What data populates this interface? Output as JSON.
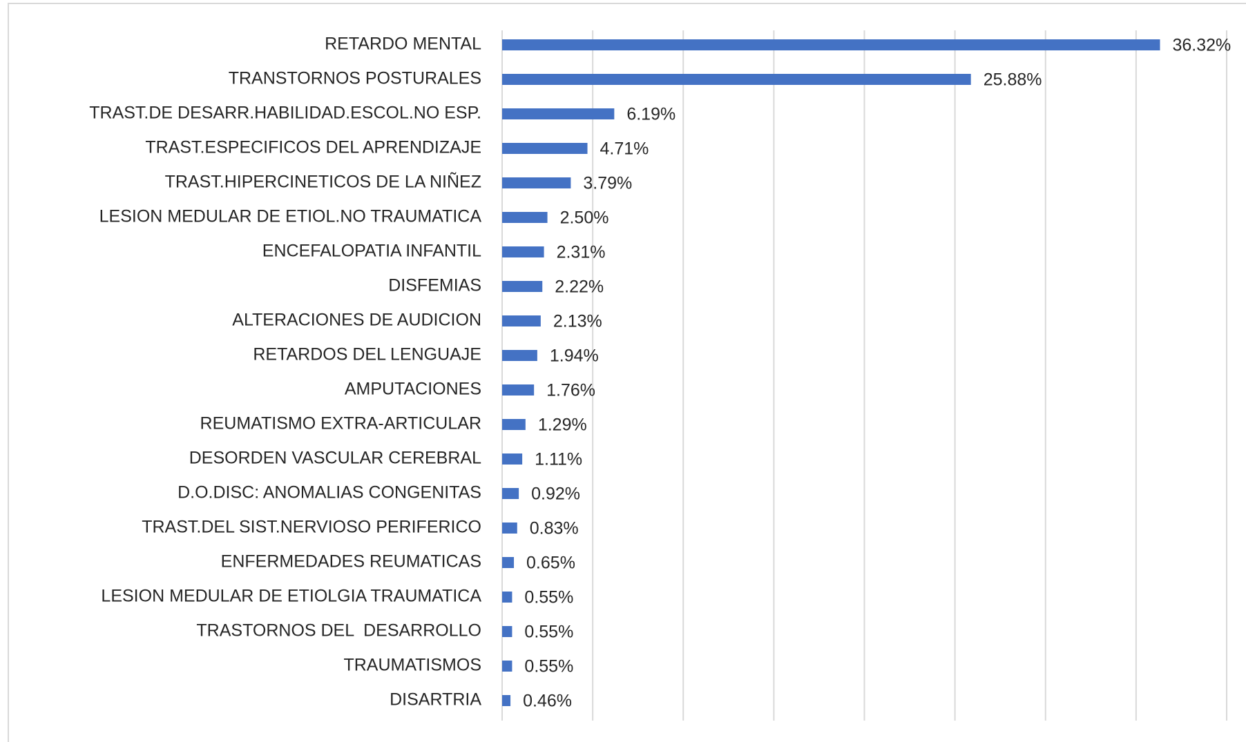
{
  "chart_data": {
    "type": "bar",
    "orientation": "horizontal",
    "categories": [
      "RETARDO MENTAL",
      "TRANSTORNOS POSTURALES",
      "TRAST.DE DESARR.HABILIDAD.ESCOL.NO ESP.",
      "TRAST.ESPECIFICOS DEL APRENDIZAJE",
      "TRAST.HIPERCINETICOS DE LA NIÑEZ",
      "LESION MEDULAR DE ETIOL.NO TRAUMATICA",
      "ENCEFALOPATIA INFANTIL",
      "DISFEMIAS",
      "ALTERACIONES DE AUDICION",
      "RETARDOS DEL LENGUAJE",
      "AMPUTACIONES",
      "REUMATISMO EXTRA-ARTICULAR",
      "DESORDEN VASCULAR CEREBRAL",
      "D.O.DISC: ANOMALIAS CONGENITAS",
      "TRAST.DEL SIST.NERVIOSO PERIFERICO",
      "ENFERMEDADES REUMATICAS",
      "LESION MEDULAR DE ETIOLGIA TRAUMATICA",
      "TRASTORNOS DEL  DESARROLLO",
      "TRAUMATISMOS",
      "DISARTRIA"
    ],
    "values": [
      36.32,
      25.88,
      6.19,
      4.71,
      3.79,
      2.5,
      2.31,
      2.22,
      2.13,
      1.94,
      1.76,
      1.29,
      1.11,
      0.92,
      0.83,
      0.65,
      0.55,
      0.55,
      0.55,
      0.46
    ],
    "value_labels": [
      "36.32%",
      "25.88%",
      "6.19%",
      "4.71%",
      "3.79%",
      "2.50%",
      "2.31%",
      "2.22%",
      "2.13%",
      "1.94%",
      "1.76%",
      "1.29%",
      "1.11%",
      "0.92%",
      "0.83%",
      "0.65%",
      "0.55%",
      "0.55%",
      "0.55%",
      "0.46%"
    ],
    "color": "#4472c4",
    "xlim": [
      0,
      40
    ],
    "xticks": [
      0,
      5,
      10,
      15,
      20,
      25,
      30,
      35,
      40
    ],
    "grid": true
  }
}
